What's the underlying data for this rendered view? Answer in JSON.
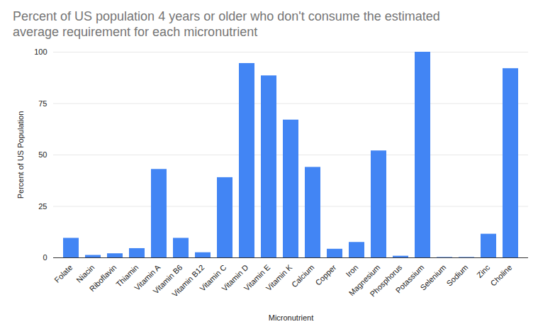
{
  "chart_data": {
    "type": "bar",
    "title": "Percent of US population 4 years or older who don't consume the estimated average requirement for each micronutrient",
    "x_label": "Micronutrient",
    "y_label": "Percent of US Population",
    "categories": [
      "Folate",
      "Niacin",
      "Riboflavin",
      "Thiamin",
      "Vitamin A",
      "Vitamin B6",
      "Vitamin B12",
      "Vitamin C",
      "Vitamin D",
      "Vitamin E",
      "Vitamin K",
      "Calcium",
      "Copper",
      "Iron",
      "Magnesium",
      "Phosphorus",
      "Potassium",
      "Selenium",
      "Sodium",
      "Zinc",
      "Choline"
    ],
    "values": [
      9.5,
      1.2,
      2,
      4.5,
      43,
      9.5,
      2.5,
      39,
      94.5,
      88.5,
      67,
      44,
      4.2,
      7.5,
      52,
      0.8,
      100,
      0.2,
      0.2,
      11.5,
      92
    ],
    "color": "#4285f4",
    "ylim": [
      0,
      100
    ],
    "yticks": [
      0,
      25,
      50,
      75,
      100
    ],
    "grid": true
  }
}
